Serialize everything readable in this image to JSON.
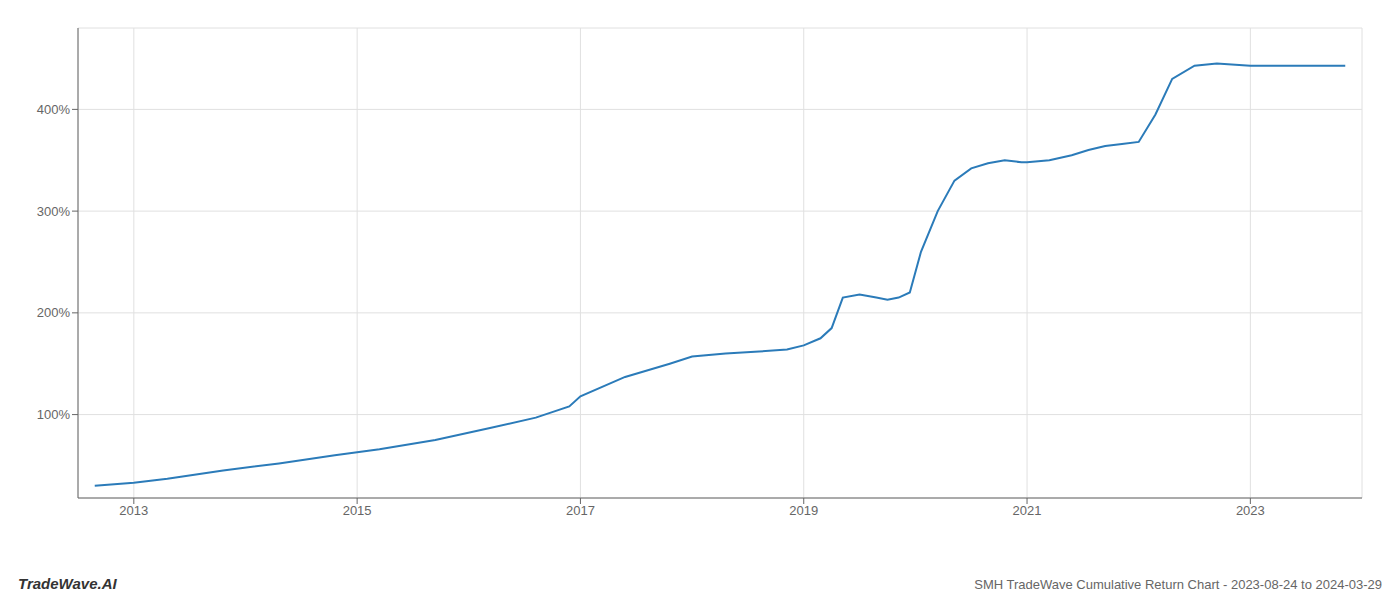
{
  "chart_data": {
    "type": "line",
    "title": "SMH TradeWave Cumulative Return Chart - 2023-08-24 to 2024-03-29",
    "annotations": [
      "TradeWave.AI"
    ],
    "color": "#2B7BB9",
    "grid": true,
    "xlim": [
      2012.5,
      2024.0
    ],
    "ylim": [
      18,
      480
    ],
    "xticks": [
      2013,
      2015,
      2017,
      2019,
      2021,
      2023
    ],
    "yticks": [
      {
        "value": 100,
        "label": "100%"
      },
      {
        "value": 200,
        "label": "200%"
      },
      {
        "value": 300,
        "label": "300%"
      },
      {
        "value": 400,
        "label": "400%"
      }
    ],
    "x": [
      2012.65,
      2013.0,
      2013.3,
      2013.8,
      2014.3,
      2014.8,
      2015.2,
      2015.7,
      2016.2,
      2016.6,
      2016.9,
      2017.0,
      2017.4,
      2017.8,
      2018.0,
      2018.3,
      2018.6,
      2018.85,
      2019.0,
      2019.15,
      2019.25,
      2019.35,
      2019.5,
      2019.65,
      2019.75,
      2019.85,
      2019.95,
      2020.05,
      2020.2,
      2020.35,
      2020.5,
      2020.65,
      2020.8,
      2020.95,
      2021.0,
      2021.2,
      2021.4,
      2021.55,
      2021.7,
      2021.85,
      2022.0,
      2022.15,
      2022.3,
      2022.5,
      2022.7,
      2023.0,
      2023.3,
      2023.6,
      2023.85
    ],
    "values": [
      30,
      33,
      37,
      45,
      52,
      60,
      66,
      75,
      87,
      97,
      108,
      118,
      137,
      150,
      157,
      160,
      162,
      164,
      168,
      175,
      185,
      215,
      218,
      215,
      213,
      215,
      220,
      260,
      300,
      330,
      342,
      347,
      350,
      348,
      348,
      350,
      355,
      360,
      364,
      366,
      368,
      395,
      430,
      443,
      445,
      443,
      443,
      443,
      443
    ]
  }
}
